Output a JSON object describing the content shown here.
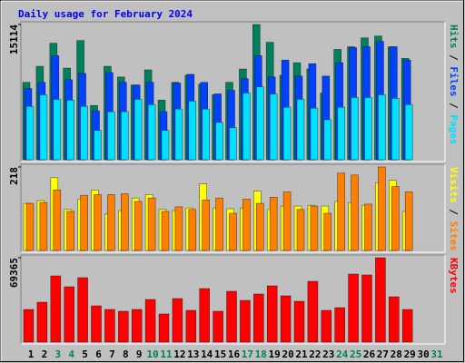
{
  "chart_data": [
    {
      "type": "bar",
      "title": "Daily usage for February 2024",
      "legend_separator": " / ",
      "ylim": [
        0,
        15114
      ],
      "yticks": [
        15114
      ],
      "series": [
        {
          "name": "Hits",
          "color": "#00805c",
          "values": [
            8651,
            10440,
            13025,
            10241,
            13324,
            6065,
            10440,
            9247,
            8352,
            10043,
            6662,
            8651,
            9446,
            8452,
            7259,
            8651,
            10142,
            15114,
            13125,
            9446,
            10838,
            10142,
            7457,
            12330,
            12628,
            13622,
            13821,
            12628,
            11335,
            null,
            null
          ]
        },
        {
          "name": "Files",
          "color": "#0040ff",
          "values": [
            7954,
            8650,
            11633,
            8949,
            9645,
            5469,
            9744,
            8650,
            8352,
            8650,
            5369,
            8551,
            9545,
            8650,
            7358,
            7755,
            9048,
            11633,
            9247,
            11136,
            9346,
            10738,
            9346,
            10838,
            12528,
            12627,
            13224,
            12627,
            11136,
            null,
            null
          ]
        },
        {
          "name": "Pages",
          "color": "#00e0ff",
          "values": [
            5966,
            7258,
            6761,
            6662,
            5966,
            3281,
            5369,
            5369,
            6761,
            6165,
            3281,
            5668,
            6562,
            5668,
            4176,
            3579,
            7457,
            8153,
            7358,
            5866,
            6761,
            5767,
            4474,
            5866,
            6960,
            6960,
            7258,
            6861,
            6165,
            null,
            null
          ]
        }
      ]
    },
    {
      "type": "bar",
      "legend_separator": " / ",
      "ylim": [
        0,
        218
      ],
      "yticks": [
        218
      ],
      "series": [
        {
          "name": "Visits",
          "color": "#ffff00",
          "values": [
            123,
            130,
            190,
            107,
            134,
            158,
            95,
            104,
            137,
            146,
            107,
            104,
            111,
            174,
            111,
            109,
            111,
            155,
            107,
            116,
            116,
            118,
            116,
            128,
            125,
            118,
            176,
            183,
            102,
            null,
            null
          ]
        },
        {
          "name": "Sites",
          "color": "#ff8000",
          "values": [
            123,
            125,
            158,
            102,
            144,
            146,
            146,
            148,
            128,
            137,
            102,
            114,
            107,
            132,
            137,
            97,
            134,
            123,
            139,
            153,
            107,
            116,
            97,
            202,
            197,
            121,
            218,
            167,
            153,
            null,
            null
          ]
        }
      ]
    },
    {
      "type": "bar",
      "ylim": [
        0,
        69365
      ],
      "yticks": [
        69365
      ],
      "categories": [
        "1",
        "2",
        "3",
        "4",
        "5",
        "6",
        "7",
        "8",
        "9",
        "10",
        "11",
        "12",
        "13",
        "14",
        "15",
        "16",
        "17",
        "18",
        "19",
        "20",
        "21",
        "22",
        "23",
        "24",
        "25",
        "26",
        "27",
        "28",
        "29",
        "30",
        "31"
      ],
      "highlight_indices": [
        2,
        3,
        9,
        10,
        16,
        17,
        23,
        24,
        30
      ],
      "highlight_color": "#00805c",
      "label_color": "#000000",
      "series": [
        {
          "name": "KBytes",
          "color": "#ff0000",
          "values": [
            26852,
            32820,
            54451,
            45500,
            52959,
            29836,
            26852,
            25361,
            26852,
            35057,
            23123,
            35803,
            26107,
            44008,
            25361,
            41770,
            34311,
            39533,
            46246,
            38041,
            33566,
            49976,
            26107,
            28344,
            55943,
            55197,
            69365,
            37295,
            26852,
            null,
            null
          ]
        }
      ]
    }
  ]
}
